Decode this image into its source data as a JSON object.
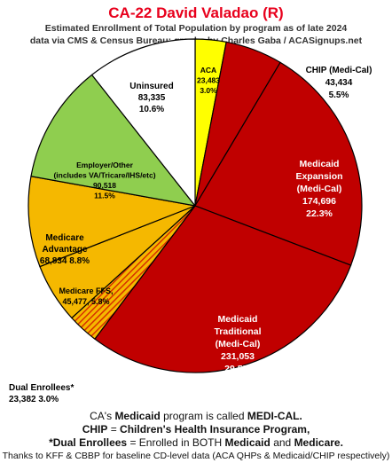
{
  "title": "CA-22 David Valadao (R)",
  "subtitle_line1": "Estimated Enrollment of Total Population by program as of late 2024",
  "subtitle_line2": "data via CMS & Census Bureau; graphs by Charles Gaba / ACASignups.net",
  "chart_data": {
    "type": "pie",
    "slices": [
      {
        "name": "ACA",
        "value": 23483,
        "value_label": "23,483",
        "percent": 3.0,
        "percent_label": "3.0%",
        "color": "#ffff00"
      },
      {
        "name": "CHIP (Medi-Cal)",
        "value": 43434,
        "value_label": "43,434",
        "percent": 5.5,
        "percent_label": "5.5%",
        "color": "#c00000"
      },
      {
        "name": "Medicaid Expansion (Medi-Cal)",
        "value": 174696,
        "value_label": "174,696",
        "percent": 22.3,
        "percent_label": "22.3%",
        "color": "#c00000"
      },
      {
        "name": "Medicaid Traditional (Medi-Cal)",
        "value": 231053,
        "value_label": "231,053",
        "percent": 29.5,
        "percent_label": "29.5%",
        "color": "#c00000"
      },
      {
        "name": "Dual Enrollees*",
        "value": 23382,
        "value_label": "23,382",
        "percent": 3.0,
        "percent_label": "3.0%",
        "color": "#e86000",
        "pattern": "hatched"
      },
      {
        "name": "Medicare FFS",
        "value": 45477,
        "value_label": "45,477",
        "percent": 5.8,
        "percent_label": "5.8%",
        "color": "#f5b800"
      },
      {
        "name": "Medicare Advantage",
        "value": 68834,
        "value_label": "68,834",
        "percent": 8.8,
        "percent_label": "8.8%",
        "color": "#f5b800"
      },
      {
        "name": "Employer/Other (includes VA/Tricare/IHS/etc)",
        "value": 90518,
        "value_label": "90,518",
        "percent": 11.5,
        "percent_label": "11.5%",
        "color": "#8fce4f"
      },
      {
        "name": "Uninsured",
        "value": 83335,
        "value_label": "83,335",
        "percent": 10.6,
        "percent_label": "10.6%",
        "color": "#ffffff"
      }
    ],
    "labels": {
      "aca": [
        "ACA",
        "23,483",
        "3.0%"
      ],
      "chip": [
        "CHIP (Medi-Cal)",
        "43,434",
        "5.5%"
      ],
      "expansion": [
        "Medicaid",
        "Expansion",
        "(Medi-Cal)",
        "174,696",
        "22.3%"
      ],
      "traditional": [
        "Medicaid",
        "Traditional",
        "(Medi-Cal)",
        "231,053",
        "29.5%"
      ],
      "dual": [
        "Dual Enrollees*",
        "23,382 3.0%"
      ],
      "ffs": [
        "Medicare FFS,",
        "45,477, 5.8%"
      ],
      "advantage": [
        "Medicare",
        "Advantage",
        "68,834 8.8%"
      ],
      "employer": [
        "Employer/Other",
        "(includes VA/Tricare/IHS/etc)",
        "90,518",
        "11.5%"
      ],
      "uninsured": [
        "Uninsured",
        "83,335",
        "10.6%"
      ]
    }
  },
  "footer": {
    "line1_a": "CA's ",
    "line1_b": "Medicaid",
    "line1_c": " program is called ",
    "line1_d": "MEDI-CAL.",
    "line2_a": "CHIP",
    "line2_b": " = ",
    "line2_c": "Children's Health Insurance Program,",
    "line3_a": "*Dual Enrollees",
    "line3_b": " = Enrolled in BOTH ",
    "line3_c": "Medicaid",
    "line3_d": " and ",
    "line3_e": "Medicare.",
    "line4": "Thanks to KFF & CBBP for baseline CD-level data (ACA QHPs & Medicaid/CHIP respectively)"
  }
}
